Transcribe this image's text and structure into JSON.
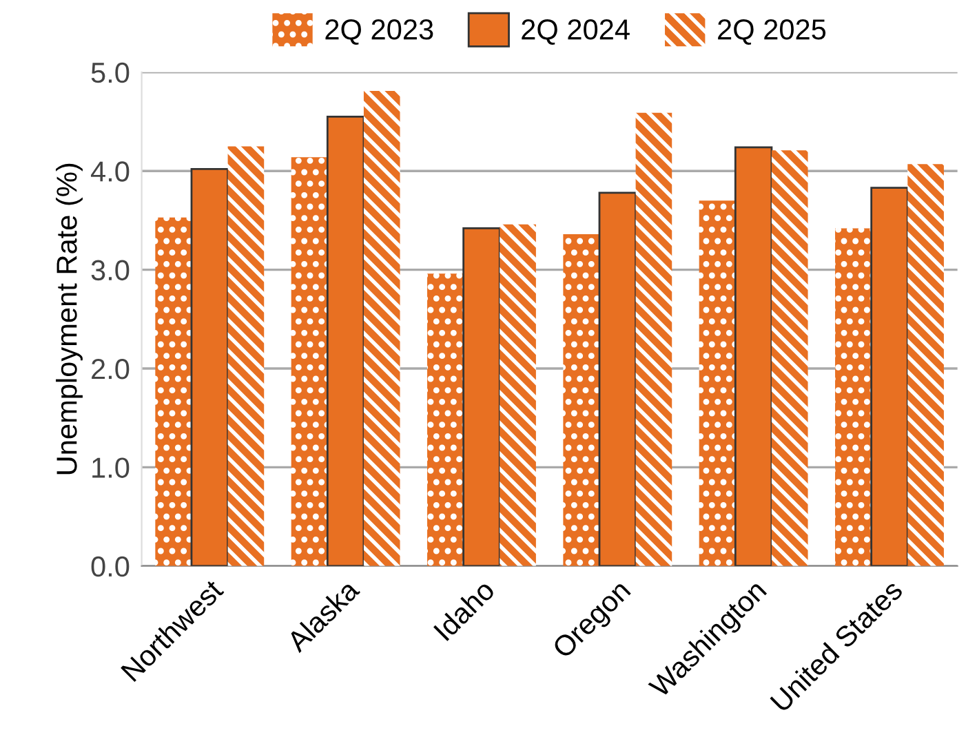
{
  "chart_data": {
    "type": "bar",
    "ylabel": "Unemployment Rate (%)",
    "categories": [
      "Northwest",
      "Alaska",
      "Idaho",
      "Oregon",
      "Washington",
      "United States"
    ],
    "series": [
      {
        "name": "2Q 2023",
        "color": "#e87022",
        "values": [
          3.53,
          4.14,
          2.96,
          3.36,
          3.7,
          3.42
        ]
      },
      {
        "name": "2Q 2024",
        "color": "#e87022",
        "values": [
          4.02,
          4.55,
          3.42,
          3.78,
          4.24,
          3.83
        ]
      },
      {
        "name": "2Q 2025",
        "color": "#e87022",
        "values": [
          4.25,
          4.81,
          3.46,
          4.59,
          4.21,
          4.07
        ]
      }
    ],
    "ylim": [
      0,
      5
    ],
    "yticks": [
      {
        "value": 0,
        "label": "0.0"
      },
      {
        "value": 1,
        "label": "1.0"
      },
      {
        "value": 2,
        "label": "2.0"
      },
      {
        "value": 3,
        "label": "3.0"
      },
      {
        "value": 4,
        "label": "4.0"
      },
      {
        "value": 5,
        "label": "5.0"
      }
    ],
    "grid": "y",
    "legend": "top"
  }
}
